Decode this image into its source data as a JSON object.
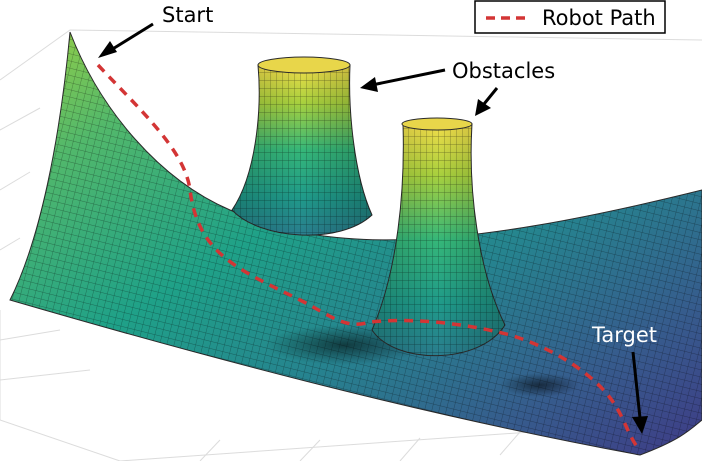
{
  "figure": {
    "type": "3d-potential-field-surface",
    "colormap": "viridis",
    "path_color": "#d33535",
    "path_style": "dashed"
  },
  "legend": {
    "label": "Robot Path",
    "placement": "top-right"
  },
  "annotations": {
    "start": "Start",
    "obstacles": "Obstacles",
    "target": "Target"
  }
}
